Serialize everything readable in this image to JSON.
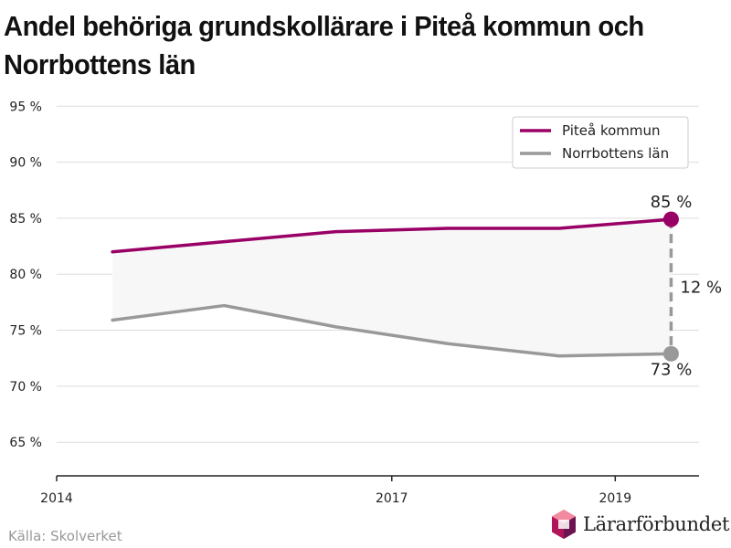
{
  "title": "Andel behöriga grundskollärare i Piteå kommun och Norrbottens län",
  "source": "Källa: Skolverket",
  "brand": {
    "name": "Lärarförbundet",
    "logo_icon": "lararforbundet-logo-icon"
  },
  "colors": {
    "pitea": "#990066",
    "norrbotten": "#999999",
    "band": "#f7f7f7",
    "grid": "#dddddd"
  },
  "chart_data": {
    "type": "line",
    "title": "Andel behöriga grundskollärare i Piteå kommun och Norrbottens län",
    "xlabel": "",
    "ylabel": "",
    "xlim": [
      2014,
      2019.75
    ],
    "ylim": [
      62,
      96
    ],
    "x_ticks": [
      2014,
      2017,
      2019
    ],
    "x_tick_labels": [
      "2014",
      "2017",
      "2019"
    ],
    "y_ticks": [
      65,
      70,
      75,
      80,
      85,
      90,
      95
    ],
    "y_tick_labels": [
      "65 %",
      "70 %",
      "75 %",
      "80 %",
      "85 %",
      "90 %",
      "95 %"
    ],
    "grid": true,
    "legend_position": "top-right",
    "series": [
      {
        "name": "Piteå kommun",
        "color": "#990066",
        "x": [
          2014.5,
          2015.5,
          2016.5,
          2017.5,
          2018.5,
          2019.5
        ],
        "values": [
          82.0,
          82.9,
          83.8,
          84.1,
          84.1,
          84.9
        ]
      },
      {
        "name": "Norrbottens län",
        "color": "#999999",
        "x": [
          2014.5,
          2015.5,
          2016.5,
          2017.5,
          2018.5,
          2019.5
        ],
        "values": [
          75.9,
          77.2,
          75.3,
          73.8,
          72.7,
          72.9
        ]
      }
    ],
    "annotations": [
      {
        "label": "85 %",
        "attach": "Piteå kommun",
        "position": "above-last"
      },
      {
        "label": "73 %",
        "attach": "Norrbottens län",
        "position": "below-last"
      },
      {
        "label": "12 %",
        "type": "difference",
        "position": "right-of-last"
      }
    ]
  }
}
